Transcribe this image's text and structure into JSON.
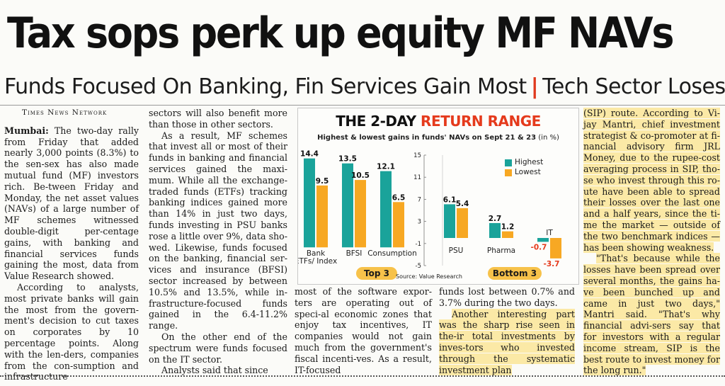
{
  "headline": "Tax sops perk up equity MF NAVs",
  "deck": {
    "left": "Funds Focused On Banking, Fin Services Gain Most",
    "separator": "|",
    "right": "Tech Sector Loses Out"
  },
  "byline": "Times News Network",
  "col1": {
    "dateline": "Mumbai:",
    "p1": " The two-day rally from Friday that added nearly 3,000 points (8.3%) to the sen-sex has also made mutual fund (MF) investors rich. Be-tween Friday and Monday, the net asset values (NAVs) of a large number of MF schemes witnessed double-digit per-centage gains, with banking and financial services funds gaining the most, data from Value Research showed.",
    "p2": "According to analysts, most private banks will gain the most from the govern-ment's decision to cut taxes on corporates by 10 percentage points. Along with the len-ders, companies from the con-sumption and infrastructure"
  },
  "col2": {
    "p1": "sectors will also benefit more than those in other sectors.",
    "p2": "As a result, MF schemes that invest all or most of their funds in banking and financial services gained the maxi-mum. While all the exchange-traded funds (ETFs) tracking banking indices gained more than 14% in just two days, funds investing in PSU banks rose a little over 9%, data sho-wed. Likewise, funds focused on the banking, financial ser-vices and insurance (BFSI) sector increased by between 10.5% and 13.5%, while in-frastructure-focused funds gained in the 6.4-11.2% range.",
    "p3": "On the other end of the spectrum were funds focused on the IT sector.",
    "p4": "Analysts said that since"
  },
  "col3": {
    "p1": "most of the software expor-ters are operating out of speci-al economic zones that enjoy tax incentives, IT companies would not gain much from the government's fiscal incenti-ves. As a result, IT-focused"
  },
  "col4": {
    "p1": "funds lost between 0.7% and 3.7% during the two days.",
    "p2": "Another interesting part was the sharp rise seen in the-ir total investments by inves-tors who invested through the systematic investment plan"
  },
  "col5": {
    "p1": "(SIP) route. According to Vi-jay Mantri, chief investment strategist & co-promoter at fi-nancial advisory firm JRL Money, due to the rupee-cost averaging process in SIP, tho-se who invest through this ro-ute have been able to spread their losses over the last one and a half years, since the ti-me the market — outside of the two benchmark indices — has been showing weakness.",
    "p2": "\"That's because while the losses have been spread over several months, the gains ha-ve been bunched up and came in just two days,\" Mantri said. \"That's why financial advi-sers say that for investors with a regular income stream, SIP is the best route to invest money for the long run.\""
  },
  "colors": {
    "highest": "#1aa39a",
    "lowest": "#f7a823",
    "accent_red": "#e53a1c",
    "highlight": "#fbe9a6",
    "group_label": "#f7c24a"
  },
  "chart_data": {
    "type": "bar",
    "title": "THE 2-DAY",
    "title_highlight": "RETURN RANGE",
    "subtitle": "Highest & lowest gains in funds' NAVs on Sept 21 & 23",
    "subtitle_unit": "(in %)",
    "legend": [
      "Highest",
      "Lowest"
    ],
    "legend_position": "top-right",
    "yticks": [
      15,
      11,
      7,
      3,
      -1,
      -5
    ],
    "ylim": [
      -5,
      15
    ],
    "grid": false,
    "groups": [
      {
        "label": "Top 3",
        "categories": [
          "Bank ETFs/ Index",
          "BFSI",
          "Consumption"
        ],
        "series": [
          {
            "name": "Highest",
            "values": [
              14.4,
              13.5,
              12.1
            ]
          },
          {
            "name": "Lowest",
            "values": [
              9.5,
              10.5,
              6.5
            ]
          }
        ]
      },
      {
        "label": "Bottom 3",
        "categories": [
          "PSU",
          "Pharma",
          "IT"
        ],
        "series": [
          {
            "name": "Highest",
            "values": [
              6.1,
              2.7,
              -0.7
            ]
          },
          {
            "name": "Lowest",
            "values": [
              5.4,
              1.2,
              -3.7
            ]
          }
        ]
      }
    ],
    "source": "Source: Value Research"
  }
}
